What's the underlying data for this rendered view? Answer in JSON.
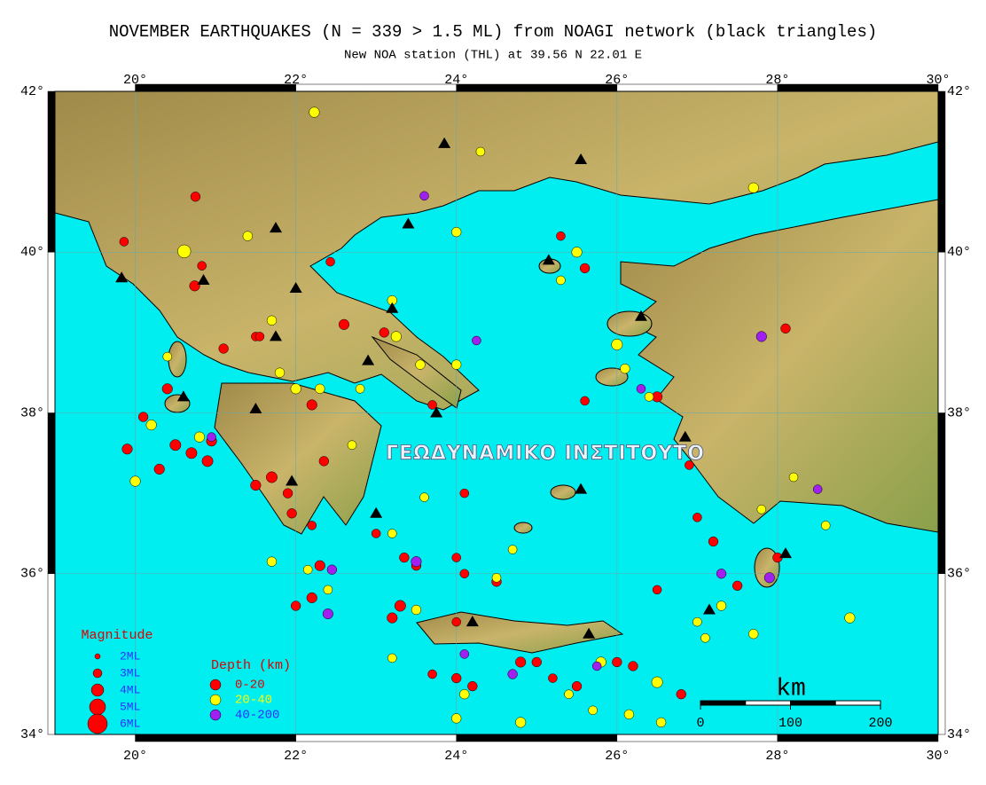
{
  "title": "NOVEMBER EARTHQUAKES (N = 339 > 1.5 ML) from NOAGI network (black triangles)",
  "subtitle": "New NOA station (THL) at 39.56 N  22.01 E",
  "watermark": "ΓΕΩΔΥΝΑΜΙΚΟ ΙΝΣΤΙΤΟΥΤΟ",
  "map": {
    "lonlim": [
      19,
      30
    ],
    "latlim": [
      34,
      42
    ],
    "lonticks": [
      {
        "value": 20,
        "label": "20°"
      },
      {
        "value": 22,
        "label": "22°"
      },
      {
        "value": 24,
        "label": "24°"
      },
      {
        "value": 26,
        "label": "26°"
      },
      {
        "value": 28,
        "label": "28°"
      },
      {
        "value": 30,
        "label": "30°"
      }
    ],
    "latticks": [
      {
        "value": 34,
        "label": "34°"
      },
      {
        "value": 36,
        "label": "36°"
      },
      {
        "value": 38,
        "label": "38°"
      },
      {
        "value": 40,
        "label": "40°"
      },
      {
        "value": 42,
        "label": "42°"
      }
    ]
  },
  "magnitude_legend": {
    "title": "Magnitude",
    "items": [
      {
        "value": 2,
        "label": "2ML"
      },
      {
        "value": 3,
        "label": "3ML"
      },
      {
        "value": 4,
        "label": "4ML"
      },
      {
        "value": 5,
        "label": "5ML"
      },
      {
        "value": 6,
        "label": "6ML"
      }
    ]
  },
  "depth_legend": {
    "title": "Depth (km)",
    "series": [
      {
        "name": "0-20",
        "color": "#ff0000",
        "points": [
          [
            20.75,
            40.69,
            3.2
          ],
          [
            19.86,
            40.13,
            3.0
          ],
          [
            20.83,
            39.83,
            3.0
          ],
          [
            20.74,
            39.58,
            3.4
          ],
          [
            22.43,
            39.88,
            3.0
          ],
          [
            21.5,
            38.95,
            3.0
          ],
          [
            21.1,
            38.8,
            3.2
          ],
          [
            20.1,
            37.95,
            3.2
          ],
          [
            19.9,
            37.55,
            3.4
          ],
          [
            20.5,
            37.6,
            3.6
          ],
          [
            20.7,
            37.5,
            3.6
          ],
          [
            20.9,
            37.4,
            3.6
          ],
          [
            20.95,
            37.65,
            3.4
          ],
          [
            20.3,
            37.3,
            3.4
          ],
          [
            21.5,
            37.1,
            3.4
          ],
          [
            21.7,
            37.2,
            3.6
          ],
          [
            21.9,
            37.0,
            3.2
          ],
          [
            21.95,
            36.75,
            3.2
          ],
          [
            22.2,
            36.6,
            3.0
          ],
          [
            22.3,
            36.1,
            3.4
          ],
          [
            22.2,
            35.7,
            3.4
          ],
          [
            22.0,
            35.6,
            3.2
          ],
          [
            23.3,
            35.6,
            3.6
          ],
          [
            23.2,
            35.45,
            3.4
          ],
          [
            23.35,
            36.2,
            3.2
          ],
          [
            23.5,
            36.1,
            3.2
          ],
          [
            24.5,
            35.9,
            3.2
          ],
          [
            24.0,
            36.2,
            3.0
          ],
          [
            24.0,
            35.4,
            3.0
          ],
          [
            24.0,
            34.7,
            3.2
          ],
          [
            24.2,
            34.6,
            3.2
          ],
          [
            24.8,
            34.9,
            3.4
          ],
          [
            25.2,
            34.7,
            3.0
          ],
          [
            25.5,
            34.6,
            3.2
          ],
          [
            26.2,
            34.85,
            3.2
          ],
          [
            26.8,
            34.5,
            3.2
          ],
          [
            27.2,
            36.4,
            3.2
          ],
          [
            27.5,
            35.85,
            3.2
          ],
          [
            26.5,
            38.2,
            3.4
          ],
          [
            26.9,
            37.35,
            3.0
          ],
          [
            25.6,
            38.15,
            3.0
          ],
          [
            25.6,
            39.8,
            3.2
          ],
          [
            25.3,
            40.2,
            3.0
          ],
          [
            23.1,
            39.0,
            3.2
          ],
          [
            22.6,
            39.1,
            3.4
          ],
          [
            22.2,
            38.1,
            3.4
          ],
          [
            23.7,
            38.1,
            3.0
          ],
          [
            23.0,
            36.5,
            3.0
          ],
          [
            21.55,
            38.95,
            3.0
          ],
          [
            20.4,
            38.3,
            3.4
          ],
          [
            28.0,
            36.2,
            3.2
          ],
          [
            28.1,
            39.05,
            3.2
          ],
          [
            24.1,
            37.0,
            3.0
          ],
          [
            24.1,
            36.0,
            3.0
          ],
          [
            22.35,
            37.4,
            3.2
          ],
          [
            26.5,
            35.8,
            3.0
          ],
          [
            27.0,
            36.7,
            3.0
          ],
          [
            23.7,
            34.75,
            3.0
          ],
          [
            25.0,
            34.9,
            3.2
          ],
          [
            26.0,
            34.9,
            3.2
          ]
        ]
      },
      {
        "name": "20-40",
        "color": "#ffff00",
        "points": [
          [
            22.23,
            41.74,
            3.4
          ],
          [
            20.61,
            40.01,
            4.2
          ],
          [
            21.7,
            39.15,
            3.2
          ],
          [
            21.8,
            38.5,
            3.2
          ],
          [
            22.0,
            38.3,
            3.4
          ],
          [
            22.3,
            38.3,
            3.2
          ],
          [
            22.8,
            38.3,
            3.0
          ],
          [
            23.25,
            38.95,
            3.4
          ],
          [
            23.55,
            38.6,
            3.2
          ],
          [
            24.0,
            38.6,
            3.2
          ],
          [
            23.2,
            39.4,
            3.2
          ],
          [
            24.3,
            41.25,
            3.0
          ],
          [
            24.0,
            40.25,
            3.2
          ],
          [
            21.4,
            40.2,
            3.2
          ],
          [
            20.4,
            38.7,
            3.0
          ],
          [
            20.2,
            37.85,
            3.4
          ],
          [
            20.0,
            37.15,
            3.4
          ],
          [
            20.8,
            37.7,
            3.4
          ],
          [
            22.7,
            37.6,
            3.0
          ],
          [
            23.2,
            36.5,
            3.0
          ],
          [
            23.6,
            36.95,
            3.0
          ],
          [
            24.7,
            36.3,
            3.0
          ],
          [
            22.15,
            36.05,
            3.0
          ],
          [
            22.4,
            35.8,
            3.0
          ],
          [
            23.2,
            34.95,
            3.0
          ],
          [
            23.5,
            35.55,
            3.2
          ],
          [
            24.5,
            35.95,
            3.0
          ],
          [
            24.1,
            34.5,
            3.2
          ],
          [
            24.0,
            34.2,
            3.2
          ],
          [
            24.8,
            34.15,
            3.4
          ],
          [
            25.4,
            34.5,
            3.0
          ],
          [
            25.8,
            34.9,
            3.4
          ],
          [
            26.5,
            34.65,
            3.6
          ],
          [
            26.55,
            34.15,
            3.2
          ],
          [
            26.15,
            34.25,
            3.2
          ],
          [
            25.7,
            34.3,
            3.0
          ],
          [
            26.0,
            38.85,
            3.6
          ],
          [
            26.1,
            38.55,
            3.2
          ],
          [
            26.4,
            38.2,
            3.0
          ],
          [
            27.0,
            35.4,
            3.0
          ],
          [
            27.1,
            35.2,
            3.0
          ],
          [
            27.3,
            35.6,
            3.2
          ],
          [
            27.7,
            35.25,
            3.2
          ],
          [
            28.9,
            35.45,
            3.4
          ],
          [
            28.6,
            36.6,
            3.0
          ],
          [
            27.8,
            36.8,
            3.0
          ],
          [
            28.2,
            37.2,
            3.0
          ],
          [
            27.7,
            40.8,
            3.4
          ],
          [
            25.5,
            40.0,
            3.4
          ],
          [
            25.3,
            39.65,
            3.0
          ],
          [
            21.7,
            36.15,
            3.2
          ]
        ]
      },
      {
        "name": "40-200",
        "color": "#a020f0",
        "points": [
          [
            27.8,
            38.95,
            3.4
          ],
          [
            26.3,
            38.3,
            3.0
          ],
          [
            24.25,
            38.9,
            3.0
          ],
          [
            22.4,
            35.5,
            3.4
          ],
          [
            22.45,
            36.05,
            3.2
          ],
          [
            23.5,
            36.15,
            3.4
          ],
          [
            27.3,
            36.0,
            3.2
          ],
          [
            27.9,
            35.95,
            3.4
          ],
          [
            24.7,
            34.75,
            3.2
          ],
          [
            24.1,
            35.0,
            3.0
          ],
          [
            28.5,
            37.05,
            3.0
          ],
          [
            20.95,
            37.7,
            3.0
          ],
          [
            23.6,
            40.7,
            3.0
          ],
          [
            25.75,
            34.85,
            3.0
          ]
        ]
      }
    ]
  },
  "stations": [
    [
      19.83,
      39.68
    ],
    [
      20.85,
      39.65
    ],
    [
      20.6,
      38.2
    ],
    [
      21.5,
      38.05
    ],
    [
      21.75,
      38.95
    ],
    [
      21.75,
      40.3
    ],
    [
      22.0,
      39.55
    ],
    [
      22.9,
      38.65
    ],
    [
      23.2,
      39.3
    ],
    [
      23.4,
      40.35
    ],
    [
      23.85,
      41.35
    ],
    [
      25.55,
      41.15
    ],
    [
      25.15,
      39.9
    ],
    [
      26.3,
      39.2
    ],
    [
      26.85,
      37.7
    ],
    [
      25.55,
      37.05
    ],
    [
      24.2,
      35.4
    ],
    [
      25.65,
      35.25
    ],
    [
      27.15,
      35.55
    ],
    [
      28.1,
      36.25
    ],
    [
      23.0,
      36.75
    ],
    [
      21.95,
      37.15
    ],
    [
      23.75,
      38.0
    ]
  ],
  "scale_bar": {
    "unit": "km",
    "ticks": [
      0,
      100,
      200
    ]
  }
}
